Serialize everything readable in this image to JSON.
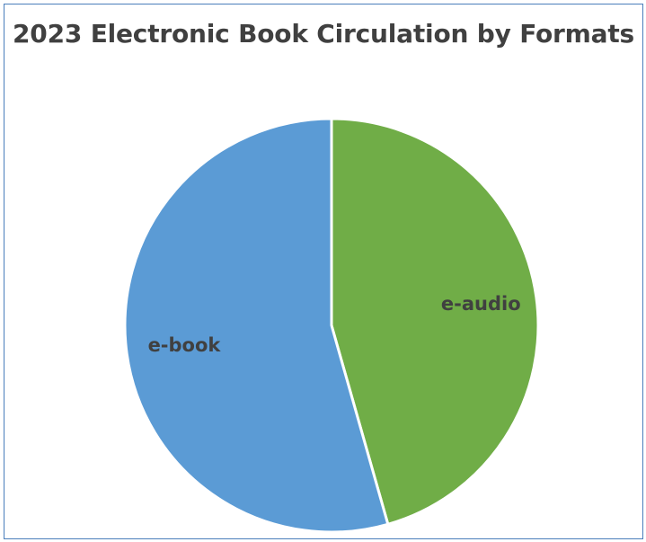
{
  "chart_data": {
    "type": "pie",
    "title": "2023 Electronic Book Circulation by Formats",
    "categories": [
      "e-audio",
      "e-book"
    ],
    "values": [
      45.6,
      54.4
    ],
    "colors": [
      "#70ad47",
      "#5b9bd5"
    ],
    "legend": "none",
    "start_angle_deg": 0,
    "direction": "clockwise"
  }
}
